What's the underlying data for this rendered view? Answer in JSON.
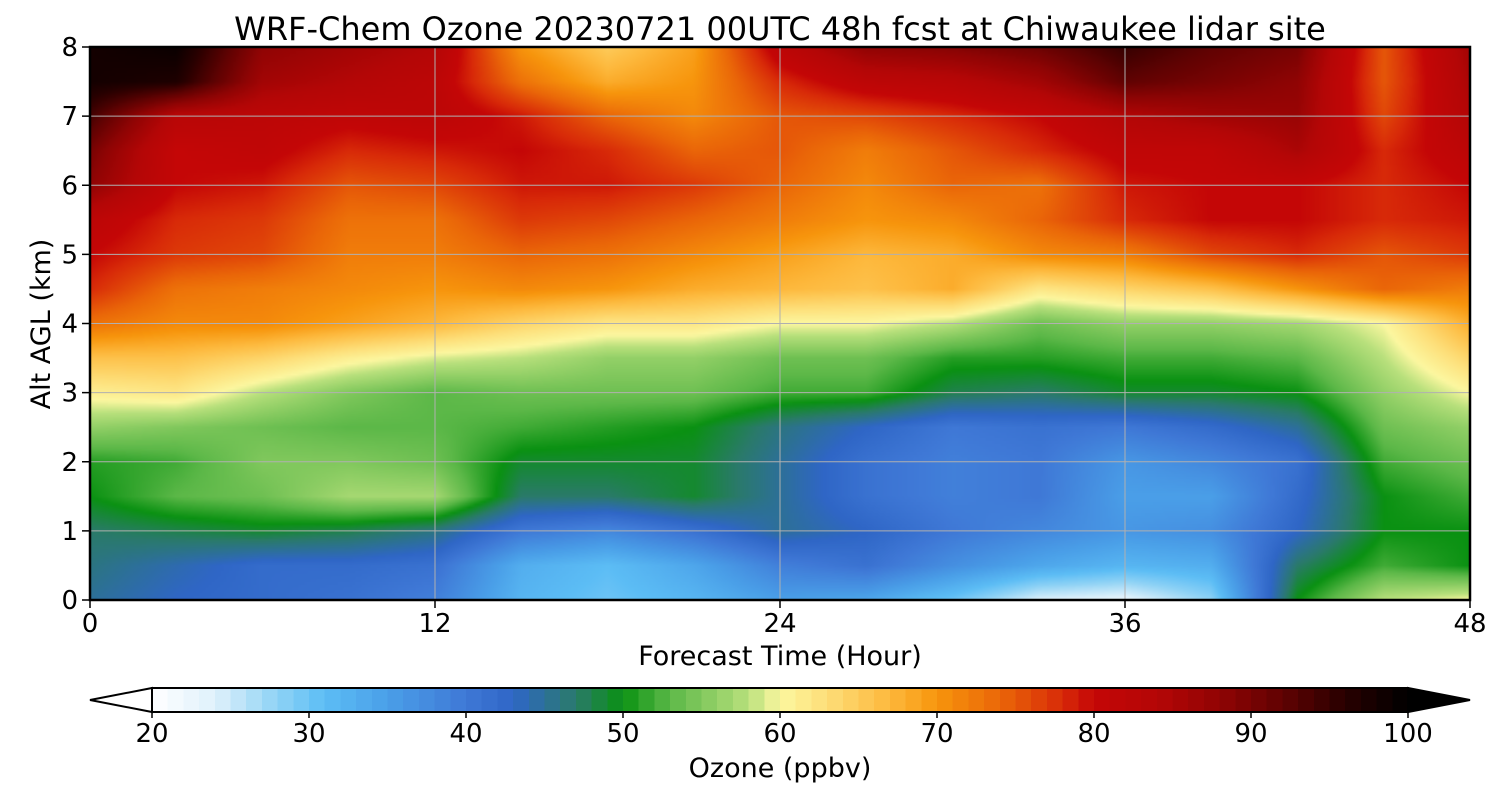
{
  "chart_data": {
    "type": "heatmap",
    "title": "WRF-Chem Ozone  20230721 00UTC 48h fcst at Chiwaukee lidar site",
    "xlabel": "Forecast Time (Hour)",
    "ylabel": "Alt AGL (km)",
    "xlim": [
      0,
      48
    ],
    "ylim": [
      0,
      8
    ],
    "xticks": [
      0,
      12,
      24,
      36,
      48
    ],
    "yticks": [
      0,
      1,
      2,
      3,
      4,
      5,
      6,
      7,
      8
    ],
    "grid": true,
    "x": [
      0,
      3,
      6,
      9,
      12,
      15,
      18,
      21,
      24,
      27,
      30,
      33,
      36,
      39,
      42,
      45,
      48
    ],
    "y": [
      0,
      0.5,
      1,
      1.5,
      2,
      2.5,
      3,
      3.5,
      4,
      4.5,
      5,
      5.5,
      6,
      6.5,
      7,
      7.5,
      8
    ],
    "z": [
      [
        45,
        43,
        42,
        41,
        39,
        32,
        30,
        32,
        35,
        34,
        30,
        24,
        23,
        28,
        50,
        58,
        60
      ],
      [
        46,
        44,
        42,
        42,
        41,
        33,
        31,
        34,
        39,
        41,
        37,
        34,
        32,
        33,
        47,
        52,
        50
      ],
      [
        47,
        48,
        49,
        48,
        46,
        40,
        38,
        41,
        45,
        43,
        40,
        38,
        36,
        37,
        43,
        50,
        50
      ],
      [
        50,
        53,
        54,
        57,
        57,
        47,
        47,
        49,
        45,
        41,
        39,
        40,
        35,
        35,
        42,
        50,
        52
      ],
      [
        51,
        52,
        55,
        55,
        54,
        49,
        49,
        49,
        45,
        41,
        39,
        40,
        36,
        38,
        41,
        52,
        54
      ],
      [
        56,
        55,
        54,
        53,
        53,
        52,
        51,
        50,
        46,
        43,
        40,
        41,
        40,
        42,
        45,
        54,
        56
      ],
      [
        61,
        62,
        58,
        55,
        53,
        54,
        54,
        54,
        52,
        52,
        48,
        47,
        49,
        49,
        50,
        56,
        60
      ],
      [
        66,
        66,
        64,
        61,
        59,
        58,
        56,
        56,
        54,
        54,
        51,
        51,
        52,
        52,
        53,
        58,
        64
      ],
      [
        73,
        71,
        71,
        69,
        67,
        64,
        62,
        62,
        60,
        60,
        58,
        54,
        56,
        56,
        57,
        60,
        68
      ],
      [
        78,
        73,
        72,
        71,
        70,
        71,
        70,
        68,
        67,
        66,
        68,
        62,
        64,
        66,
        70,
        74,
        72
      ],
      [
        80,
        77,
        76,
        72,
        72,
        74,
        73,
        71,
        69,
        67,
        68,
        71,
        72,
        76,
        78,
        75,
        77
      ],
      [
        82,
        78,
        77,
        73,
        73,
        77,
        76,
        74,
        72,
        70,
        71,
        74,
        78,
        80,
        80,
        78,
        79
      ],
      [
        88,
        80,
        79,
        75,
        76,
        79,
        79,
        77,
        74,
        71,
        74,
        73,
        79,
        80,
        80,
        78,
        80
      ],
      [
        90,
        80,
        81,
        78,
        79,
        80,
        78,
        74,
        75,
        72,
        75,
        78,
        81,
        81,
        85,
        78,
        82
      ],
      [
        94,
        83,
        82,
        81,
        82,
        79,
        74,
        71,
        75,
        76,
        78,
        80,
        84,
        86,
        87,
        76,
        84
      ],
      [
        98,
        97,
        86,
        84,
        82,
        73,
        68,
        70,
        78,
        82,
        83,
        86,
        92,
        90,
        88,
        75,
        85
      ],
      [
        98,
        99,
        88,
        86,
        84,
        70,
        65,
        69,
        82,
        88,
        89,
        91,
        95,
        92,
        90,
        75,
        86
      ]
    ],
    "colorbar": {
      "label": "Ozone  (ppbv)",
      "min": 20,
      "max": 100,
      "ticks": [
        20,
        30,
        40,
        50,
        60,
        70,
        80,
        90,
        100
      ],
      "extend": "both",
      "colors": [
        [
          20,
          "#ffffff"
        ],
        [
          24,
          "#dff1fb"
        ],
        [
          28,
          "#8ed2f5"
        ],
        [
          31,
          "#5cbdf5"
        ],
        [
          35,
          "#4a9fe8"
        ],
        [
          40,
          "#3f78d6"
        ],
        [
          43,
          "#2f66c6"
        ],
        [
          47,
          "#2a7a6a"
        ],
        [
          50,
          "#0a9112"
        ],
        [
          53,
          "#5cb848"
        ],
        [
          58,
          "#b8e07c"
        ],
        [
          60,
          "#fcf7a0"
        ],
        [
          63,
          "#fdde78"
        ],
        [
          67,
          "#fdb83c"
        ],
        [
          70,
          "#f7950c"
        ],
        [
          74,
          "#ea6608"
        ],
        [
          78,
          "#d82a08"
        ],
        [
          80,
          "#c40606"
        ],
        [
          84,
          "#b40606"
        ],
        [
          88,
          "#900404"
        ],
        [
          92,
          "#600202"
        ],
        [
          96,
          "#280000"
        ],
        [
          100,
          "#000000"
        ]
      ]
    }
  }
}
